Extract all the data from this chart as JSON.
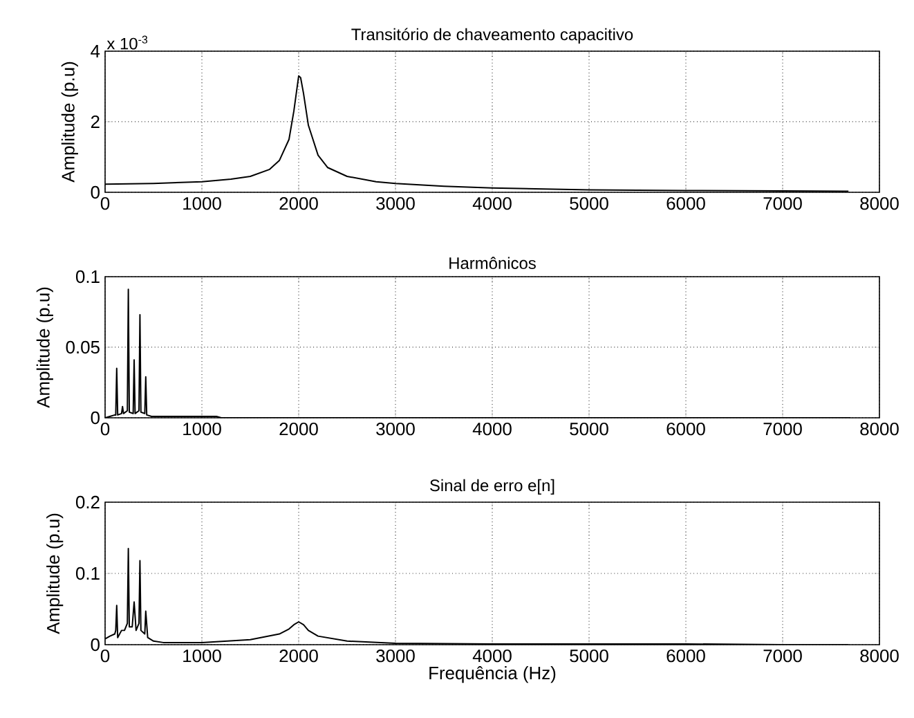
{
  "chart_data": [
    {
      "type": "line",
      "title": "Transitório de chaveamento capacitivo",
      "ylabel": "Amplitude (p.u)",
      "annotations": [
        "x 10$^{-3}$"
      ],
      "xlim": [
        0,
        8000
      ],
      "xticks": [
        0,
        1000,
        2000,
        3000,
        4000,
        5000,
        6000,
        7000,
        8000
      ],
      "ylim": [
        0,
        4
      ],
      "yticks": [
        0,
        2,
        4
      ],
      "grid": true,
      "line_style": "solid",
      "marker": "none",
      "series": [
        {
          "color": "#000000",
          "x": [
            0,
            500,
            1000,
            1300,
            1500,
            1700,
            1800,
            1900,
            1950,
            2000,
            2020,
            2050,
            2100,
            2200,
            2300,
            2500,
            2800,
            3000,
            3500,
            4000,
            5000,
            6000,
            7000,
            7680
          ],
          "values": [
            0.23,
            0.25,
            0.3,
            0.37,
            0.45,
            0.65,
            0.9,
            1.5,
            2.3,
            3.3,
            3.25,
            2.8,
            1.9,
            1.05,
            0.7,
            0.45,
            0.3,
            0.25,
            0.17,
            0.12,
            0.07,
            0.05,
            0.04,
            0.03
          ]
        }
      ]
    },
    {
      "type": "line",
      "title": "Harmônicos",
      "ylabel": "Amplitude (p.u)",
      "xlim": [
        0,
        8000
      ],
      "xticks": [
        0,
        1000,
        2000,
        3000,
        4000,
        5000,
        6000,
        7000,
        8000
      ],
      "ylim": [
        0,
        0.1
      ],
      "yticks": [
        0,
        0.05,
        0.1
      ],
      "grid": true,
      "line_style": "solid",
      "marker": "none",
      "series": [
        {
          "color": "#000000",
          "x": [
            0,
            50,
            100,
            110,
            120,
            130,
            170,
            180,
            190,
            230,
            240,
            250,
            290,
            300,
            310,
            350,
            360,
            370,
            410,
            420,
            430,
            480,
            600,
            1150,
            1200,
            7700
          ],
          "values": [
            0,
            0.001,
            0.002,
            0.002,
            0.035,
            0.002,
            0.003,
            0.008,
            0.003,
            0.005,
            0.091,
            0.004,
            0.003,
            0.041,
            0.003,
            0.005,
            0.073,
            0.004,
            0.003,
            0.029,
            0.002,
            0.001,
            0.001,
            0.001,
            0,
            0
          ]
        }
      ]
    },
    {
      "type": "line",
      "title": "Sinal de erro e[n]",
      "xlabel": "Frequência (Hz)",
      "ylabel": "Amplitude (p.u)",
      "xlim": [
        0,
        8000
      ],
      "xticks": [
        0,
        1000,
        2000,
        3000,
        4000,
        5000,
        6000,
        7000,
        8000
      ],
      "ylim": [
        0,
        0.2
      ],
      "yticks": [
        0,
        0.1,
        0.2
      ],
      "grid": true,
      "line_style": "solid",
      "marker": "none",
      "series": [
        {
          "color": "#000000",
          "x": [
            0,
            50,
            100,
            110,
            120,
            130,
            170,
            200,
            230,
            240,
            250,
            280,
            300,
            320,
            350,
            360,
            370,
            410,
            420,
            440,
            500,
            600,
            800,
            1000,
            1500,
            1800,
            1900,
            1950,
            2000,
            2050,
            2100,
            2200,
            2500,
            3000,
            4000,
            5000,
            6000,
            7000,
            7680
          ],
          "values": [
            0.008,
            0.012,
            0.015,
            0.02,
            0.055,
            0.01,
            0.02,
            0.02,
            0.03,
            0.135,
            0.025,
            0.025,
            0.06,
            0.02,
            0.03,
            0.118,
            0.02,
            0.015,
            0.047,
            0.01,
            0.005,
            0.003,
            0.003,
            0.003,
            0.007,
            0.015,
            0.022,
            0.028,
            0.032,
            0.028,
            0.02,
            0.012,
            0.005,
            0.002,
            0.001,
            0.001,
            0.001,
            0,
            0
          ]
        }
      ]
    }
  ]
}
